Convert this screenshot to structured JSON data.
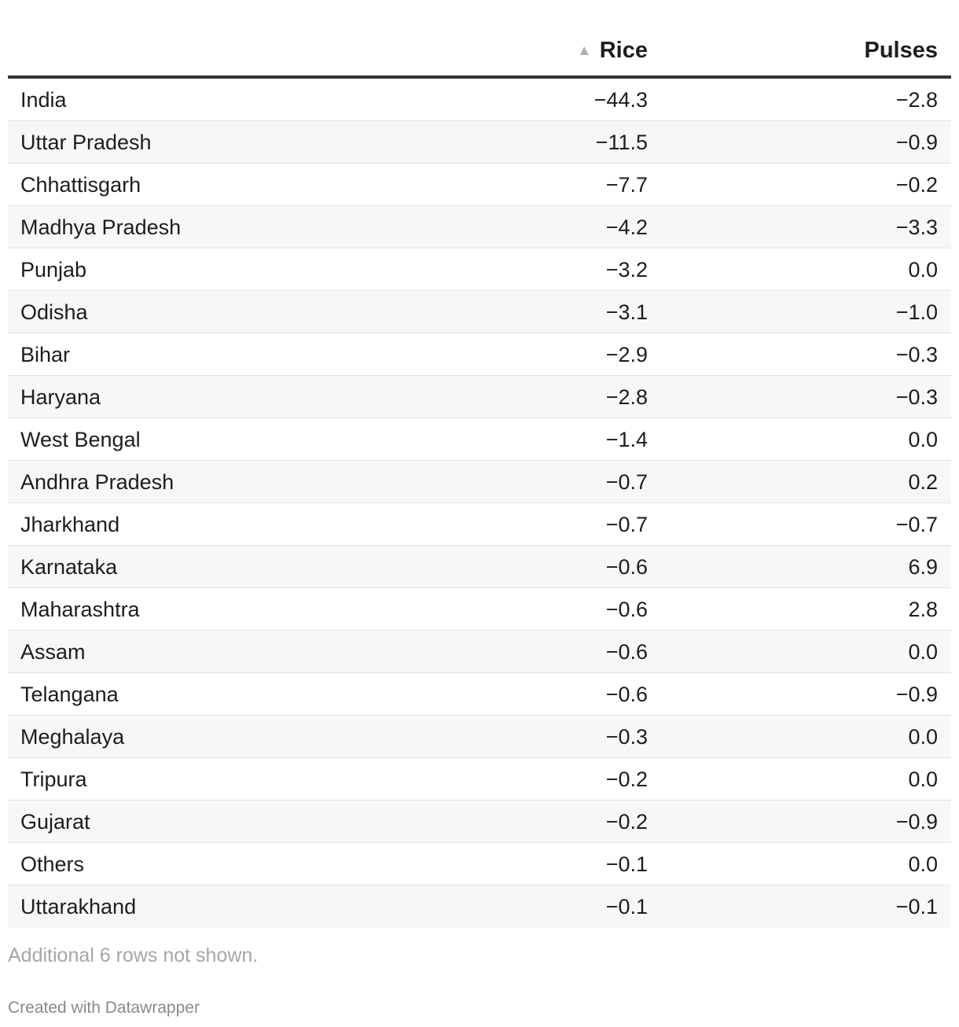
{
  "chart_data": {
    "type": "table",
    "columns": [
      {
        "key": "region",
        "label": ""
      },
      {
        "key": "rice",
        "label": "Rice",
        "sorted": "ascending"
      },
      {
        "key": "pulses",
        "label": "Pulses"
      }
    ],
    "rows": [
      {
        "region": "India",
        "rice": "−44.3",
        "pulses": "−2.8"
      },
      {
        "region": "Uttar Pradesh",
        "rice": "−11.5",
        "pulses": "−0.9"
      },
      {
        "region": "Chhattisgarh",
        "rice": "−7.7",
        "pulses": "−0.2"
      },
      {
        "region": "Madhya Pradesh",
        "rice": "−4.2",
        "pulses": "−3.3"
      },
      {
        "region": "Punjab",
        "rice": "−3.2",
        "pulses": "0.0"
      },
      {
        "region": "Odisha",
        "rice": "−3.1",
        "pulses": "−1.0"
      },
      {
        "region": "Bihar",
        "rice": "−2.9",
        "pulses": "−0.3"
      },
      {
        "region": "Haryana",
        "rice": "−2.8",
        "pulses": "−0.3"
      },
      {
        "region": "West Bengal",
        "rice": "−1.4",
        "pulses": "0.0"
      },
      {
        "region": "Andhra Pradesh",
        "rice": "−0.7",
        "pulses": "0.2"
      },
      {
        "region": "Jharkhand",
        "rice": "−0.7",
        "pulses": "−0.7"
      },
      {
        "region": "Karnataka",
        "rice": "−0.6",
        "pulses": "6.9"
      },
      {
        "region": "Maharashtra",
        "rice": "−0.6",
        "pulses": "2.8"
      },
      {
        "region": "Assam",
        "rice": "−0.6",
        "pulses": "0.0"
      },
      {
        "region": "Telangana",
        "rice": "−0.6",
        "pulses": "−0.9"
      },
      {
        "region": "Meghalaya",
        "rice": "−0.3",
        "pulses": "0.0"
      },
      {
        "region": "Tripura",
        "rice": "−0.2",
        "pulses": "0.0"
      },
      {
        "region": "Gujarat",
        "rice": "−0.2",
        "pulses": "−0.9"
      },
      {
        "region": "Others",
        "rice": "−0.1",
        "pulses": "0.0"
      },
      {
        "region": "Uttarakhand",
        "rice": "−0.1",
        "pulses": "−0.1"
      }
    ],
    "sort_indicator": "▲",
    "note": "Additional 6 rows not shown.",
    "credit": "Created with Datawrapper"
  }
}
